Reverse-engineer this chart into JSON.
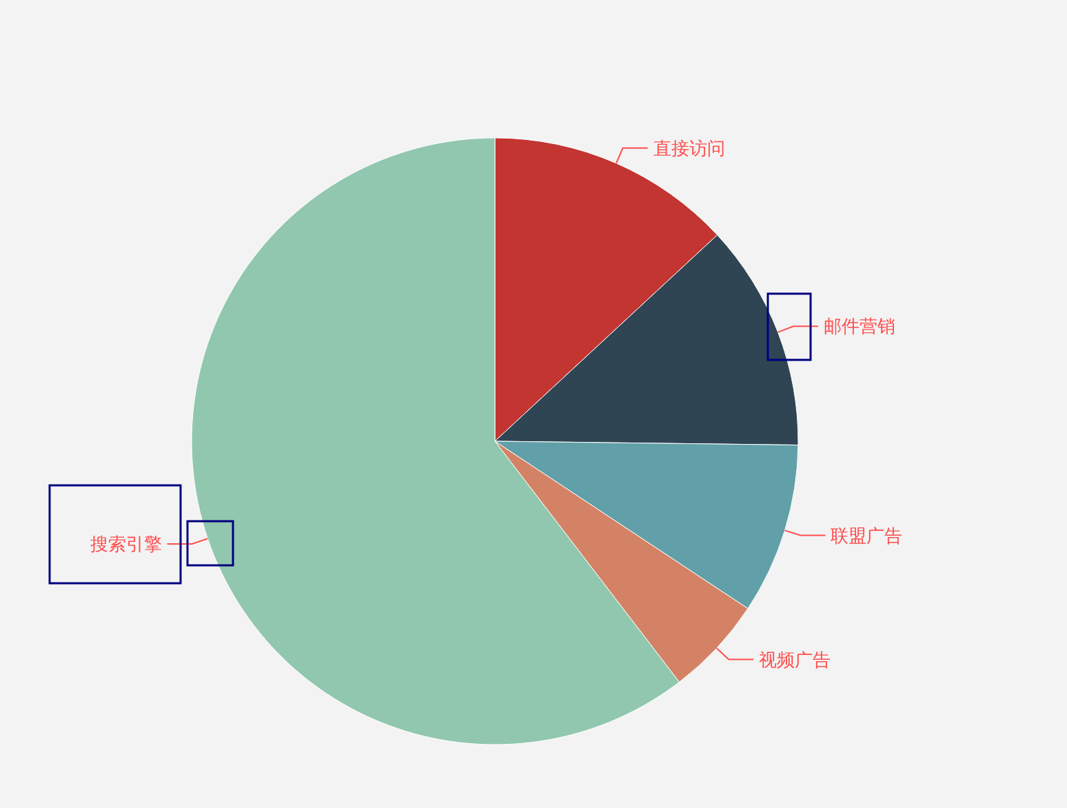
{
  "chart_data": {
    "type": "pie",
    "categories": [
      "直接访问",
      "邮件营销",
      "联盟广告",
      "视频广告",
      "搜索引擎"
    ],
    "values": [
      13.1,
      12.1,
      9.1,
      5.3,
      60.4
    ],
    "colors": [
      "#c23531",
      "#2f4554",
      "#61a0a8",
      "#d48265",
      "#91c7ae"
    ]
  }
}
